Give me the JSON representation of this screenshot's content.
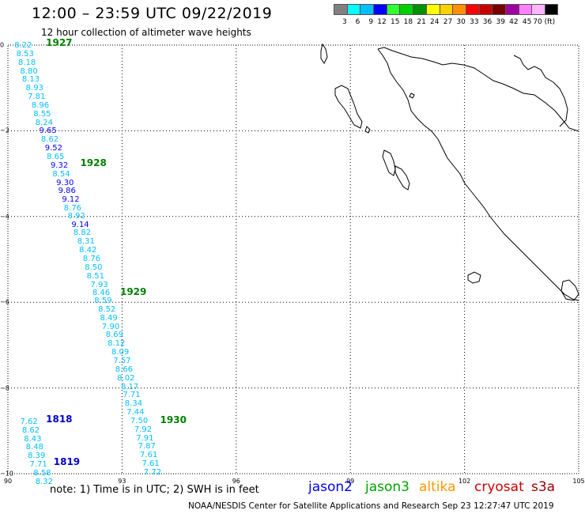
{
  "header": {
    "title": "12:00 – 23:59 UTC 09/22/2019",
    "subtitle": "12 hour collection of altimeter wave heights"
  },
  "colorbar": {
    "colors": [
      "#808080",
      "#00ffff",
      "#00bfff",
      "#0000ff",
      "#30ff30",
      "#00d000",
      "#009000",
      "#ffff00",
      "#ffd000",
      "#ff9000",
      "#ff0000",
      "#c80000",
      "#780000",
      "#a000a0",
      "#ff80ff",
      "#ffb4ff",
      "#000000"
    ],
    "labels": [
      "3",
      "6",
      "9",
      "12",
      "15",
      "18",
      "21",
      "24",
      "27",
      "30",
      "33",
      "36",
      "39",
      "42",
      "45",
      "70 (ft)"
    ]
  },
  "map": {
    "lon_range": [
      90,
      105
    ],
    "lat_range": [
      -10,
      0
    ],
    "x_ticks": [
      "90",
      "93",
      "96",
      "99",
      "102",
      "105"
    ],
    "y_ticks": [
      "0",
      "−2",
      "−4",
      "−6",
      "−8",
      "−10"
    ]
  },
  "tracks": [
    {
      "id": "1927",
      "label": "1927",
      "satellite": "jason3",
      "label_color": "#008000",
      "label_pos": [
        91.0,
        0.05
      ],
      "points": [
        {
          "lon": 90.15,
          "lat": -0.02,
          "swh": "8.22",
          "color": "#00bfff"
        },
        {
          "lon": 90.2,
          "lat": -0.22,
          "swh": "8.53",
          "color": "#00bfff"
        },
        {
          "lon": 90.25,
          "lat": -0.42,
          "swh": "8.18",
          "color": "#00bfff"
        },
        {
          "lon": 90.3,
          "lat": -0.62,
          "swh": "8.80",
          "color": "#00bfff"
        },
        {
          "lon": 90.35,
          "lat": -0.82,
          "swh": "8.13",
          "color": "#00bfff"
        },
        {
          "lon": 90.45,
          "lat": -1.02,
          "swh": "8.93",
          "color": "#00bfff"
        },
        {
          "lon": 90.5,
          "lat": -1.22,
          "swh": "7.81",
          "color": "#00bfff"
        },
        {
          "lon": 90.6,
          "lat": -1.42,
          "swh": "8.96",
          "color": "#00bfff"
        },
        {
          "lon": 90.65,
          "lat": -1.62,
          "swh": "8.55",
          "color": "#00bfff"
        },
        {
          "lon": 90.7,
          "lat": -1.82,
          "swh": "8.24",
          "color": "#00bfff"
        },
        {
          "lon": 90.8,
          "lat": -2.02,
          "swh": "9.65",
          "color": "#0000ff"
        },
        {
          "lon": 90.85,
          "lat": -2.22,
          "swh": "8.62",
          "color": "#00bfff"
        },
        {
          "lon": 90.95,
          "lat": -2.42,
          "swh": "9.52",
          "color": "#0000ff"
        },
        {
          "lon": 91.0,
          "lat": -2.62,
          "swh": "8.65",
          "color": "#00bfff"
        }
      ]
    },
    {
      "id": "1928",
      "label": "1928",
      "satellite": "jason3",
      "label_color": "#008000",
      "label_pos": [
        91.9,
        -2.75
      ],
      "points": [
        {
          "lon": 91.1,
          "lat": -2.82,
          "swh": "9.32",
          "color": "#0000ff"
        },
        {
          "lon": 91.15,
          "lat": -3.02,
          "swh": "8.54",
          "color": "#00bfff"
        },
        {
          "lon": 91.25,
          "lat": -3.22,
          "swh": "9.30",
          "color": "#0000ff"
        },
        {
          "lon": 91.3,
          "lat": -3.42,
          "swh": "9.86",
          "color": "#0000ff"
        },
        {
          "lon": 91.4,
          "lat": -3.62,
          "swh": "9.12",
          "color": "#0000ff"
        },
        {
          "lon": 91.45,
          "lat": -3.82,
          "swh": "8.76",
          "color": "#00bfff"
        },
        {
          "lon": 91.55,
          "lat": -4.0,
          "swh": "8.92",
          "color": "#00bfff"
        },
        {
          "lon": 91.65,
          "lat": -4.2,
          "swh": "9.14",
          "color": "#0000ff"
        },
        {
          "lon": 91.7,
          "lat": -4.4,
          "swh": "8.82",
          "color": "#00bfff"
        },
        {
          "lon": 91.8,
          "lat": -4.6,
          "swh": "8.31",
          "color": "#00bfff"
        },
        {
          "lon": 91.85,
          "lat": -4.8,
          "swh": "8.42",
          "color": "#00bfff"
        },
        {
          "lon": 91.95,
          "lat": -5.0,
          "swh": "8.76",
          "color": "#00bfff"
        },
        {
          "lon": 92.0,
          "lat": -5.2,
          "swh": "8.50",
          "color": "#00bfff"
        },
        {
          "lon": 92.05,
          "lat": -5.4,
          "swh": "8.51",
          "color": "#00bfff"
        },
        {
          "lon": 92.15,
          "lat": -5.6,
          "swh": "7.93",
          "color": "#00bfff"
        },
        {
          "lon": 92.2,
          "lat": -5.8,
          "swh": "8.46",
          "color": "#00bfff"
        }
      ]
    },
    {
      "id": "1929",
      "label": "1929",
      "satellite": "jason3",
      "label_color": "#008000",
      "label_pos": [
        92.95,
        -5.75
      ],
      "points": [
        {
          "lon": 92.25,
          "lat": -5.98,
          "swh": "8.59",
          "color": "#00bfff"
        },
        {
          "lon": 92.35,
          "lat": -6.18,
          "swh": "8.52",
          "color": "#00bfff"
        },
        {
          "lon": 92.4,
          "lat": -6.38,
          "swh": "8.49",
          "color": "#00bfff"
        },
        {
          "lon": 92.45,
          "lat": -6.58,
          "swh": "7.90",
          "color": "#00bfff"
        },
        {
          "lon": 92.55,
          "lat": -6.78,
          "swh": "8.69",
          "color": "#00bfff"
        },
        {
          "lon": 92.6,
          "lat": -6.98,
          "swh": "8.12",
          "color": "#00bfff"
        },
        {
          "lon": 92.7,
          "lat": -7.18,
          "swh": "8.09",
          "color": "#00bfff"
        },
        {
          "lon": 92.75,
          "lat": -7.38,
          "swh": "7.57",
          "color": "#00bfff"
        },
        {
          "lon": 92.8,
          "lat": -7.58,
          "swh": "8.66",
          "color": "#00bfff"
        },
        {
          "lon": 92.85,
          "lat": -7.78,
          "swh": "8.02",
          "color": "#00bfff"
        },
        {
          "lon": 92.95,
          "lat": -7.98,
          "swh": "8.17",
          "color": "#00bfff"
        },
        {
          "lon": 93.0,
          "lat": -8.18,
          "swh": "7.71",
          "color": "#00bfff"
        },
        {
          "lon": 93.05,
          "lat": -8.38,
          "swh": "8.34",
          "color": "#00bfff"
        },
        {
          "lon": 93.1,
          "lat": -8.58,
          "swh": "7.44",
          "color": "#00bfff"
        }
      ]
    },
    {
      "id": "1930",
      "label": "1930",
      "satellite": "jason3",
      "label_color": "#008000",
      "label_pos": [
        94.0,
        -8.75
      ],
      "points": [
        {
          "lon": 93.2,
          "lat": -8.78,
          "swh": "7.50",
          "color": "#00bfff"
        },
        {
          "lon": 93.3,
          "lat": -8.98,
          "swh": "7.92",
          "color": "#00bfff"
        },
        {
          "lon": 93.35,
          "lat": -9.18,
          "swh": "7.91",
          "color": "#00bfff"
        },
        {
          "lon": 93.4,
          "lat": -9.38,
          "swh": "7.87",
          "color": "#00bfff"
        },
        {
          "lon": 93.45,
          "lat": -9.58,
          "swh": "7.61",
          "color": "#00bfff"
        },
        {
          "lon": 93.5,
          "lat": -9.78,
          "swh": "7.61",
          "color": "#00bfff"
        },
        {
          "lon": 93.55,
          "lat": -9.98,
          "swh": "7.72",
          "color": "#00bfff"
        }
      ]
    },
    {
      "id": "1818",
      "label": "1818",
      "satellite": "jason2",
      "label_color": "#0000cc",
      "label_pos": [
        91.0,
        -8.73
      ],
      "points": [
        {
          "lon": 90.3,
          "lat": -8.8,
          "swh": "7.62",
          "color": "#00bfff"
        },
        {
          "lon": 90.35,
          "lat": -9.0,
          "swh": "8.62",
          "color": "#00bfff"
        },
        {
          "lon": 90.4,
          "lat": -9.2,
          "swh": "8.43",
          "color": "#00bfff"
        },
        {
          "lon": 90.45,
          "lat": -9.4,
          "swh": "8.48",
          "color": "#00bfff"
        },
        {
          "lon": 90.5,
          "lat": -9.6,
          "swh": "8.39",
          "color": "#00bfff"
        }
      ]
    },
    {
      "id": "1819",
      "label": "1819",
      "satellite": "jason2",
      "label_color": "#0000cc",
      "label_pos": [
        91.2,
        -9.73
      ],
      "points": [
        {
          "lon": 90.55,
          "lat": -9.8,
          "swh": "7.71",
          "color": "#00bfff"
        },
        {
          "lon": 90.65,
          "lat": -10.0,
          "swh": "8.58",
          "color": "#00bfff"
        },
        {
          "lon": 90.7,
          "lat": -10.2,
          "swh": "8.32",
          "color": "#00bfff"
        }
      ]
    }
  ],
  "footer": {
    "note": "note:  1) Time is in UTC; 2) SWH is in feet",
    "legend": [
      {
        "name": "jason2",
        "color": "#0000ff"
      },
      {
        "name": "jason3",
        "color": "#00a000"
      },
      {
        "name": "altika",
        "color": "#ff9900"
      },
      {
        "name": "cryosat",
        "color": "#cc0000"
      },
      {
        "name": "s3a",
        "color": "#990000"
      }
    ],
    "credit": "NOAA/NESDIS Center for Satellite Applications and Research    Sep 23 12:27:47 UTC 2019"
  }
}
